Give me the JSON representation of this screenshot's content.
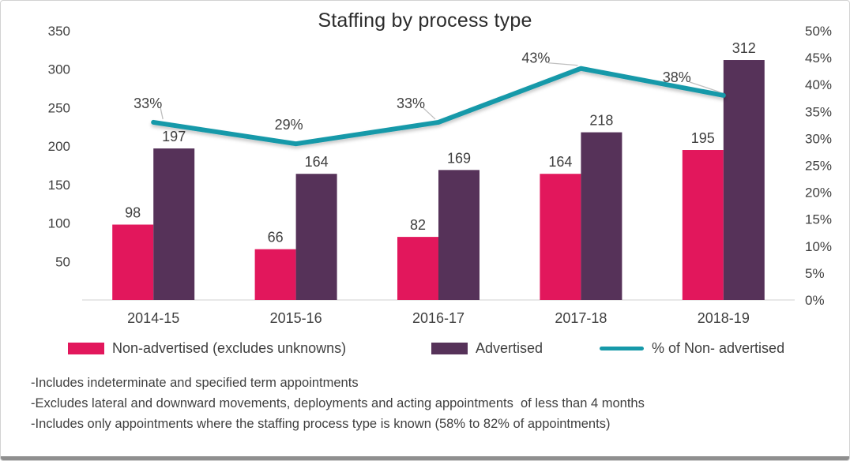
{
  "chart_data": {
    "type": "combo-bar-line",
    "title": "Staffing by process type",
    "categories": [
      "2014-15",
      "2015-16",
      "2016-17",
      "2017-18",
      "2018-19"
    ],
    "bar_series": [
      {
        "name": "Non-advertised (excludes unknowns)",
        "color": "#e2175c",
        "values": [
          98,
          66,
          82,
          164,
          195
        ]
      },
      {
        "name": "Advertised",
        "color": "#563259",
        "values": [
          197,
          164,
          169,
          218,
          312
        ]
      }
    ],
    "line_series": {
      "name": "% of Non- advertised",
      "color": "#1699a9",
      "values_pct": [
        33,
        29,
        33,
        43,
        38
      ],
      "labels": [
        "33%",
        "29%",
        "33%",
        "43%",
        "38%"
      ]
    },
    "left_axis": {
      "min": 0,
      "max": 350,
      "step": 50,
      "ticks": [
        "350",
        "300",
        "250",
        "200",
        "150",
        "100",
        "50"
      ]
    },
    "right_axis": {
      "min": 0,
      "max": 50,
      "step": 5,
      "ticks": [
        "50%",
        "45%",
        "40%",
        "35%",
        "30%",
        "25%",
        "20%",
        "15%",
        "10%",
        "5%",
        "0%"
      ]
    },
    "grid": false,
    "legend_position": "bottom"
  },
  "footnotes": [
    "-Includes indeterminate and specified term appointments",
    "-Excludes lateral and downward movements, deployments and acting appointments  of less than 4 months",
    "-Includes only appointments where the staffing process type is known (58% to 82% of appointments)"
  ],
  "colors": {
    "axis_text": "#3f3f3f",
    "baseline": "#d9d9d9",
    "leader_line": "#bfbfbf"
  }
}
